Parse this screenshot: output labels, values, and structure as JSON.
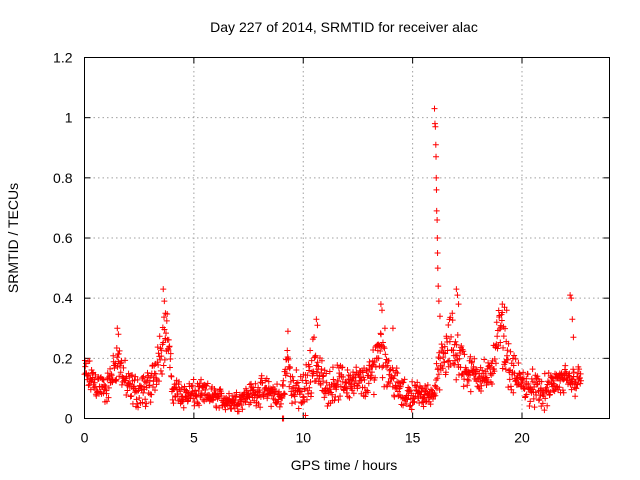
{
  "chart_data": {
    "type": "scatter",
    "title": "Day 227 of 2014, SRMTID for receiver alac",
    "xlabel": "GPS time / hours",
    "ylabel": "SRMTID / TECUs",
    "xlim": [
      0,
      24
    ],
    "ylim": [
      0,
      1.2
    ],
    "x_ticks": [
      0,
      5,
      10,
      15,
      20
    ],
    "x_tick_labels": [
      "0",
      "5",
      "10",
      "15",
      "20"
    ],
    "y_ticks": [
      0,
      0.2,
      0.4,
      0.6,
      0.8,
      1.0,
      1.2
    ],
    "y_tick_labels": [
      "0",
      "0.2",
      "0.4",
      "0.6",
      "0.8",
      "1",
      "1.2"
    ],
    "grid": true,
    "marker": "+",
    "color": "#ff0000",
    "series": [
      {
        "name": "SRMTID",
        "profile": [
          [
            0.0,
            0.15,
            0.05
          ],
          [
            0.5,
            0.12,
            0.05
          ],
          [
            1.0,
            0.09,
            0.04
          ],
          [
            1.5,
            0.2,
            0.06
          ],
          [
            2.0,
            0.1,
            0.05
          ],
          [
            2.5,
            0.09,
            0.05
          ],
          [
            3.0,
            0.1,
            0.05
          ],
          [
            3.5,
            0.24,
            0.08
          ],
          [
            3.8,
            0.28,
            0.08
          ],
          [
            4.0,
            0.1,
            0.04
          ],
          [
            4.5,
            0.08,
            0.04
          ],
          [
            5.0,
            0.08,
            0.04
          ],
          [
            5.5,
            0.08,
            0.035
          ],
          [
            6.0,
            0.07,
            0.03
          ],
          [
            6.5,
            0.06,
            0.03
          ],
          [
            7.0,
            0.06,
            0.03
          ],
          [
            7.5,
            0.08,
            0.03
          ],
          [
            8.0,
            0.09,
            0.04
          ],
          [
            8.5,
            0.09,
            0.04
          ],
          [
            9.0,
            0.06,
            0.04
          ],
          [
            9.3,
            0.2,
            0.06
          ],
          [
            9.5,
            0.1,
            0.05
          ],
          [
            10.0,
            0.08,
            0.06
          ],
          [
            10.5,
            0.2,
            0.08
          ],
          [
            11.0,
            0.1,
            0.05
          ],
          [
            11.5,
            0.12,
            0.05
          ],
          [
            12.0,
            0.12,
            0.05
          ],
          [
            12.5,
            0.12,
            0.05
          ],
          [
            13.0,
            0.12,
            0.05
          ],
          [
            13.5,
            0.25,
            0.1
          ],
          [
            14.0,
            0.15,
            0.06
          ],
          [
            14.5,
            0.08,
            0.04
          ],
          [
            15.0,
            0.08,
            0.04
          ],
          [
            15.5,
            0.08,
            0.03
          ],
          [
            15.9,
            0.08,
            0.03
          ],
          [
            16.3,
            0.18,
            0.06
          ],
          [
            16.8,
            0.25,
            0.1
          ],
          [
            17.5,
            0.15,
            0.05
          ],
          [
            18.0,
            0.15,
            0.05
          ],
          [
            18.5,
            0.13,
            0.05
          ],
          [
            19.0,
            0.3,
            0.08
          ],
          [
            19.5,
            0.15,
            0.06
          ],
          [
            20.0,
            0.12,
            0.05
          ],
          [
            20.5,
            0.1,
            0.05
          ],
          [
            21.0,
            0.08,
            0.05
          ],
          [
            21.5,
            0.12,
            0.04
          ],
          [
            22.0,
            0.12,
            0.05
          ],
          [
            22.5,
            0.13,
            0.05
          ],
          [
            22.7,
            0.13,
            0.02
          ]
        ],
        "highlights": [
          [
            1.5,
            0.3
          ],
          [
            1.55,
            0.28
          ],
          [
            3.6,
            0.43
          ],
          [
            3.65,
            0.39
          ],
          [
            3.7,
            0.35
          ],
          [
            9.3,
            0.29
          ],
          [
            10.6,
            0.33
          ],
          [
            10.65,
            0.31
          ],
          [
            13.55,
            0.38
          ],
          [
            13.6,
            0.36
          ],
          [
            14.1,
            0.3
          ],
          [
            16.0,
            1.03
          ],
          [
            16.02,
            0.98
          ],
          [
            16.04,
            0.97
          ],
          [
            16.06,
            0.91
          ],
          [
            16.07,
            0.87
          ],
          [
            16.08,
            0.8
          ],
          [
            16.09,
            0.76
          ],
          [
            16.1,
            0.69
          ],
          [
            16.12,
            0.66
          ],
          [
            16.13,
            0.6
          ],
          [
            16.14,
            0.55
          ],
          [
            16.15,
            0.5
          ],
          [
            16.17,
            0.44
          ],
          [
            16.2,
            0.39
          ],
          [
            16.25,
            0.34
          ],
          [
            17.0,
            0.43
          ],
          [
            17.05,
            0.41
          ],
          [
            17.1,
            0.38
          ],
          [
            19.1,
            0.38
          ],
          [
            19.2,
            0.37
          ],
          [
            19.3,
            0.36
          ],
          [
            22.2,
            0.41
          ],
          [
            22.25,
            0.4
          ],
          [
            22.3,
            0.33
          ],
          [
            22.35,
            0.27
          ],
          [
            9.05,
            0.0
          ],
          [
            9.1,
            0.0
          ],
          [
            10.1,
            0.01
          ],
          [
            15.5,
            0.04
          ]
        ]
      }
    ]
  }
}
